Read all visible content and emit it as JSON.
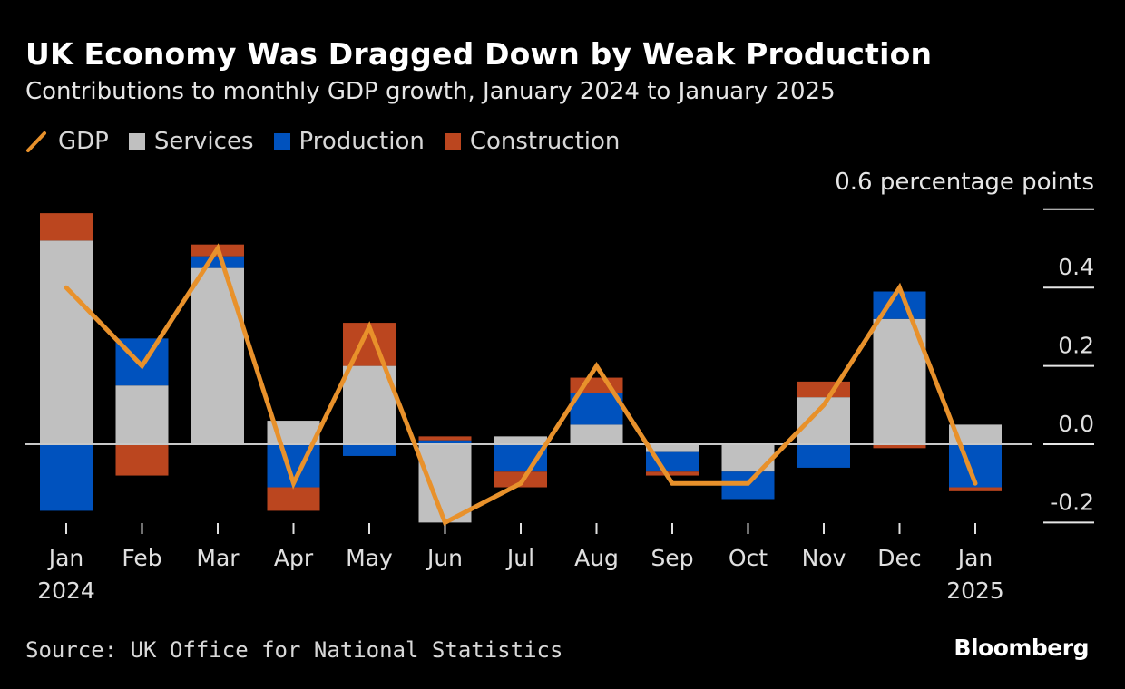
{
  "header": {
    "title": "UK Economy Was Dragged Down by Weak Production",
    "subtitle": "Contributions to monthly GDP growth, January 2024 to January 2025"
  },
  "legend": [
    {
      "label": "GDP",
      "type": "line",
      "color": "#e8912b"
    },
    {
      "label": "Services",
      "type": "box",
      "color": "#c0c0c0"
    },
    {
      "label": "Production",
      "type": "box",
      "color": "#0052be"
    },
    {
      "label": "Construction",
      "type": "box",
      "color": "#bb461f"
    }
  ],
  "footer": {
    "source": "Source: UK Office for National Statistics",
    "brand": "Bloomberg"
  },
  "chart_data": {
    "type": "bar",
    "stacked": true,
    "title": "UK Economy Was Dragged Down by Weak Production",
    "subtitle": "Contributions to monthly GDP growth, January 2024 to January 2025",
    "unit_label": "0.6 percentage points",
    "xlabel": "",
    "ylabel": "percentage points",
    "ylim": [
      -0.2,
      0.6
    ],
    "yticks": [
      -0.2,
      0.0,
      0.2,
      0.4,
      0.6
    ],
    "ytick_labels": [
      "-0.2",
      "0.0",
      "0.2",
      "0.4",
      "0.6 percentage points"
    ],
    "y_axis_side": "right",
    "categories": [
      "Jan",
      "Feb",
      "Mar",
      "Apr",
      "May",
      "Jun",
      "Jul",
      "Aug",
      "Sep",
      "Oct",
      "Nov",
      "Dec",
      "Jan"
    ],
    "category_sublabels": [
      "2024",
      "",
      "",
      "",
      "",
      "",
      "",
      "",
      "",
      "",
      "",
      "",
      "2025"
    ],
    "series": [
      {
        "name": "Services",
        "type": "bar",
        "color": "#c0c0c0",
        "values": [
          0.52,
          0.15,
          0.45,
          0.06,
          0.2,
          -0.2,
          0.02,
          0.05,
          -0.02,
          -0.07,
          0.12,
          0.32,
          0.05
        ]
      },
      {
        "name": "Production",
        "type": "bar",
        "color": "#0052be",
        "values": [
          -0.17,
          0.12,
          0.03,
          -0.11,
          -0.03,
          0.01,
          -0.07,
          0.08,
          -0.05,
          -0.07,
          -0.06,
          0.07,
          -0.11
        ]
      },
      {
        "name": "Construction",
        "type": "bar",
        "color": "#bb461f",
        "values": [
          0.07,
          -0.08,
          0.03,
          -0.06,
          0.11,
          0.01,
          -0.04,
          0.04,
          -0.01,
          0.0,
          0.04,
          -0.01,
          -0.01
        ]
      },
      {
        "name": "GDP",
        "type": "line",
        "color": "#e8912b",
        "values": [
          0.4,
          0.2,
          0.5,
          -0.1,
          0.3,
          -0.2,
          -0.1,
          0.2,
          -0.1,
          -0.1,
          0.1,
          0.4,
          -0.1
        ]
      }
    ],
    "legend_position": "top-left",
    "grid": false,
    "background": "#000000"
  }
}
